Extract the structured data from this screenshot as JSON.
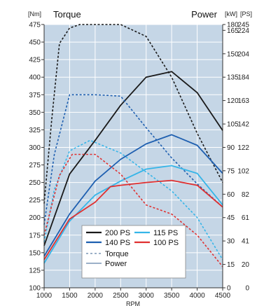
{
  "chart_data": {
    "type": "line",
    "left_unit": "[Nm]",
    "left_title": "Torque",
    "right_title": "Power",
    "right_unit_kw": "[kW]",
    "right_unit_ps": "[PS]",
    "xlabel": "RPM",
    "x_ticks": [
      1000,
      1500,
      2000,
      2500,
      3000,
      3500,
      4000,
      4500
    ],
    "xlim": [
      1000,
      4500
    ],
    "y_ticks": [
      100,
      125,
      150,
      175,
      200,
      225,
      250,
      275,
      300,
      325,
      350,
      375,
      400,
      425,
      450,
      475
    ],
    "ylim": [
      100,
      475
    ],
    "right_ticks": [
      {
        "kw": "0",
        "ps": "0",
        "y": 100
      },
      {
        "kw": "15",
        "ps": "20",
        "y": 133.3
      },
      {
        "kw": "30",
        "ps": "41",
        "y": 166.7
      },
      {
        "kw": "45",
        "ps": "61",
        "y": 200
      },
      {
        "kw": "60",
        "ps": "82",
        "y": 233.3
      },
      {
        "kw": "75",
        "ps": "102",
        "y": 266.7
      },
      {
        "kw": "90",
        "ps": "122",
        "y": 300
      },
      {
        "kw": "105",
        "ps": "142",
        "y": 333.3
      },
      {
        "kw": "120",
        "ps": "163",
        "y": 366.7
      },
      {
        "kw": "135",
        "ps": "184",
        "y": 400
      },
      {
        "kw": "150",
        "ps": "204",
        "y": 433.3
      },
      {
        "kw": "165",
        "ps": "224",
        "y": 466.7
      },
      {
        "kw": "180",
        "ps": "245",
        "y": 500
      }
    ],
    "background": "#c5d6e6",
    "grid": true,
    "series": [
      {
        "name": "200 PS",
        "color": "#1a1a1a",
        "kind": "torque",
        "points": [
          [
            1000,
            220
          ],
          [
            1150,
            340
          ],
          [
            1300,
            448
          ],
          [
            1500,
            470
          ],
          [
            1700,
            475
          ],
          [
            2000,
            475
          ],
          [
            2500,
            475
          ],
          [
            3000,
            458
          ],
          [
            3500,
            400
          ],
          [
            4000,
            320
          ],
          [
            4500,
            250
          ]
        ]
      },
      {
        "name": "200 PS",
        "color": "#1a1a1a",
        "kind": "power",
        "points": [
          [
            1000,
            160
          ],
          [
            1500,
            262
          ],
          [
            2000,
            310
          ],
          [
            2500,
            360
          ],
          [
            3000,
            400
          ],
          [
            3500,
            408
          ],
          [
            4000,
            378
          ],
          [
            4500,
            324
          ]
        ]
      },
      {
        "name": "140 PS",
        "color": "#1e5fb0",
        "kind": "torque",
        "points": [
          [
            1000,
            190
          ],
          [
            1200,
            290
          ],
          [
            1500,
            375
          ],
          [
            2000,
            375
          ],
          [
            2500,
            373
          ],
          [
            3000,
            328
          ],
          [
            3500,
            285
          ],
          [
            4000,
            248
          ],
          [
            4500,
            215
          ]
        ]
      },
      {
        "name": "140 PS",
        "color": "#1e5fb0",
        "kind": "power",
        "points": [
          [
            1000,
            145
          ],
          [
            1500,
            205
          ],
          [
            2000,
            252
          ],
          [
            2500,
            283
          ],
          [
            3000,
            305
          ],
          [
            3500,
            318
          ],
          [
            4000,
            303
          ],
          [
            4500,
            263
          ]
        ]
      },
      {
        "name": "115 PS",
        "color": "#35b5e8",
        "kind": "torque",
        "points": [
          [
            1000,
            165
          ],
          [
            1200,
            240
          ],
          [
            1500,
            295
          ],
          [
            1900,
            310
          ],
          [
            2500,
            292
          ],
          [
            3000,
            265
          ],
          [
            3500,
            238
          ],
          [
            4000,
            200
          ],
          [
            4500,
            140
          ]
        ]
      },
      {
        "name": "115 PS",
        "color": "#35b5e8",
        "kind": "power",
        "points": [
          [
            1000,
            135
          ],
          [
            1500,
            195
          ],
          [
            2000,
            232
          ],
          [
            2500,
            252
          ],
          [
            3000,
            269
          ],
          [
            3500,
            274
          ],
          [
            4000,
            263
          ],
          [
            4500,
            218
          ]
        ]
      },
      {
        "name": "100 PS",
        "color": "#e03030",
        "kind": "torque",
        "points": [
          [
            1000,
            175
          ],
          [
            1300,
            260
          ],
          [
            1550,
            290
          ],
          [
            2000,
            290
          ],
          [
            2500,
            262
          ],
          [
            3000,
            218
          ],
          [
            3500,
            205
          ],
          [
            4000,
            175
          ],
          [
            4500,
            130
          ]
        ]
      },
      {
        "name": "100 PS",
        "color": "#e03030",
        "kind": "power",
        "points": [
          [
            1000,
            140
          ],
          [
            1500,
            198
          ],
          [
            2000,
            222
          ],
          [
            2300,
            244
          ],
          [
            2500,
            246
          ],
          [
            3000,
            250
          ],
          [
            3500,
            253
          ],
          [
            4000,
            246
          ],
          [
            4500,
            215
          ]
        ]
      }
    ],
    "legend": {
      "position": "lower-center",
      "entries": [
        {
          "label": "200 PS",
          "color": "#1a1a1a"
        },
        {
          "label": "115 PS",
          "color": "#35b5e8"
        },
        {
          "label": "140 PS",
          "color": "#1e5fb0"
        },
        {
          "label": "100 PS",
          "color": "#e03030"
        }
      ],
      "style_entries": [
        {
          "label": "Torque",
          "style": "dashed",
          "color": "#9bb0c8"
        },
        {
          "label": "Power",
          "style": "solid",
          "color": "#9bb0c8"
        }
      ]
    }
  }
}
